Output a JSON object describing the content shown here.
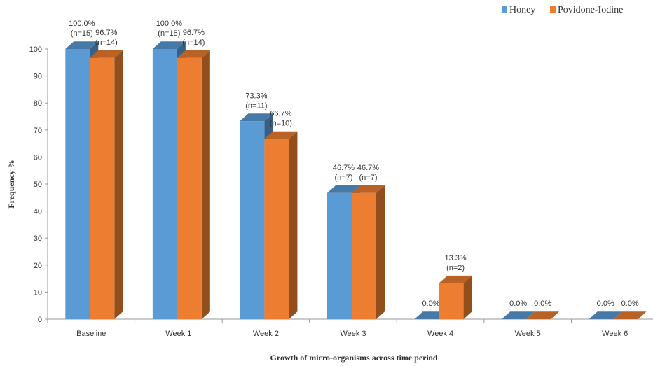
{
  "chart_data": {
    "type": "bar",
    "title": "",
    "xlabel": "Growth of micro-organisms across time period",
    "ylabel": "Frequency %",
    "ylim": [
      0,
      100
    ],
    "yticks": [
      0,
      10,
      20,
      30,
      40,
      50,
      60,
      70,
      80,
      90,
      100
    ],
    "grid": false,
    "legend_position": "top-right",
    "categories": [
      "Baseline",
      "Week 1",
      "Week 2",
      "Week 3",
      "Week 4",
      "Week 5",
      "Week 6"
    ],
    "series": [
      {
        "name": "Honey",
        "color": "#5b9bd5",
        "values": [
          100.0,
          100.0,
          73.3,
          46.7,
          0.0,
          0.0,
          0.0
        ],
        "labels": [
          [
            "100.0%",
            "(n=15)"
          ],
          [
            "100.0%",
            "(n=15)"
          ],
          [
            "73.3%",
            "(n=11)"
          ],
          [
            "46.7%",
            "(n=7)"
          ],
          [
            "0.0%"
          ],
          [
            "0.0%"
          ],
          [
            "0.0%"
          ]
        ]
      },
      {
        "name": "Povidone-Iodine",
        "color": "#ed7d31",
        "values": [
          96.7,
          96.7,
          66.7,
          46.7,
          13.3,
          0.0,
          0.0
        ],
        "labels": [
          [
            "96.7%",
            "(n=14)"
          ],
          [
            "96.7%",
            "(n=14)"
          ],
          [
            "66.7%",
            "(n=10)"
          ],
          [
            "46.7%",
            "(n=7)"
          ],
          [
            "13.3%",
            "(n=2)"
          ],
          [
            "0.0%"
          ],
          [
            "0.0%"
          ]
        ]
      }
    ]
  }
}
